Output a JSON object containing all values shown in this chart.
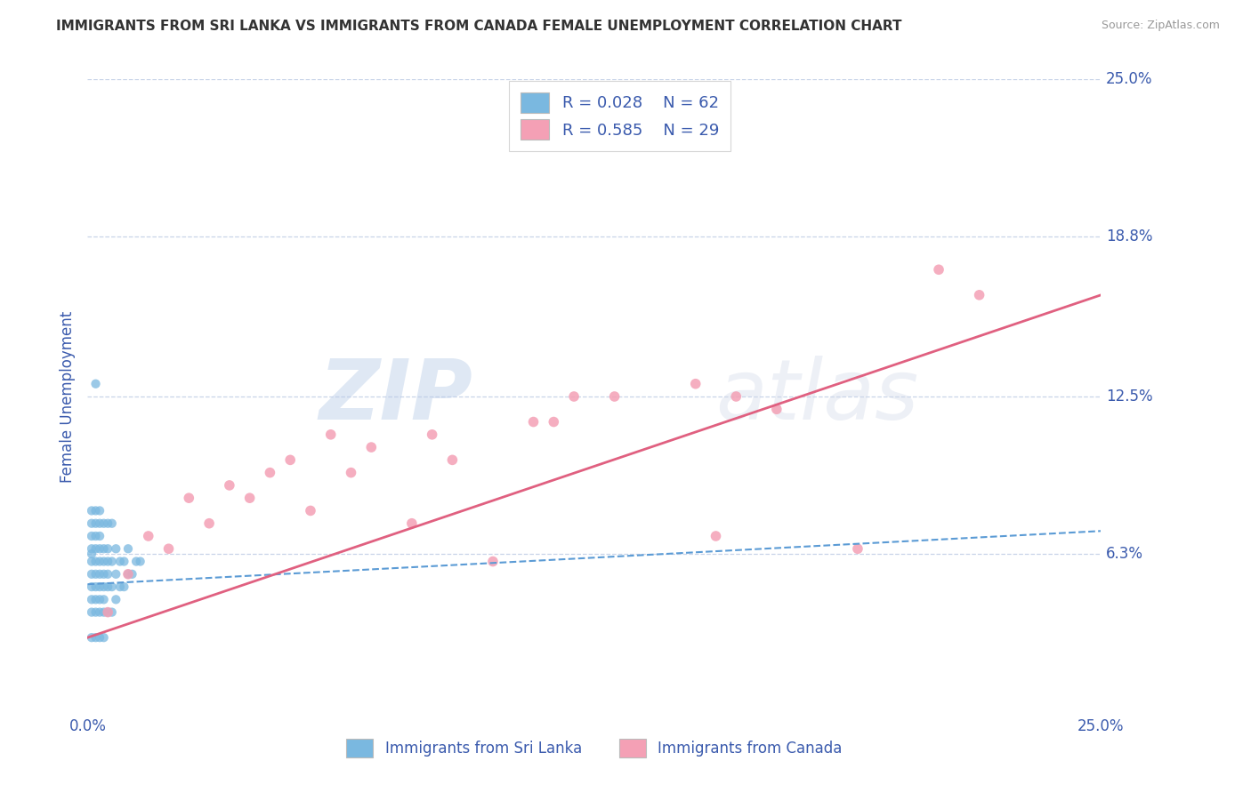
{
  "title": "IMMIGRANTS FROM SRI LANKA VS IMMIGRANTS FROM CANADA FEMALE UNEMPLOYMENT CORRELATION CHART",
  "source_text": "Source: ZipAtlas.com",
  "ylabel": "Female Unemployment",
  "xmin": 0.0,
  "xmax": 0.25,
  "ymin": 0.0,
  "ymax": 0.25,
  "yticks": [
    0.063,
    0.125,
    0.188,
    0.25
  ],
  "ytick_labels": [
    "6.3%",
    "12.5%",
    "18.8%",
    "25.0%"
  ],
  "watermark_zip": "ZIP",
  "watermark_atlas": "atlas",
  "legend_r1": "R = 0.028",
  "legend_n1": "N = 62",
  "legend_r2": "R = 0.585",
  "legend_n2": "N = 29",
  "color_blue": "#7ab8e0",
  "color_pink": "#f4a0b5",
  "color_line_blue": "#5b9bd5",
  "color_line_pink": "#e06080",
  "color_text": "#3a5aad",
  "background_color": "#ffffff",
  "grid_color": "#c8d4e8",
  "sri_lanka_x": [
    0.001,
    0.001,
    0.001,
    0.001,
    0.001,
    0.001,
    0.001,
    0.001,
    0.001,
    0.001,
    0.001,
    0.002,
    0.002,
    0.002,
    0.002,
    0.002,
    0.002,
    0.002,
    0.002,
    0.002,
    0.002,
    0.002,
    0.003,
    0.003,
    0.003,
    0.003,
    0.003,
    0.003,
    0.003,
    0.003,
    0.003,
    0.003,
    0.004,
    0.004,
    0.004,
    0.004,
    0.004,
    0.004,
    0.004,
    0.004,
    0.005,
    0.005,
    0.005,
    0.005,
    0.005,
    0.005,
    0.006,
    0.006,
    0.006,
    0.006,
    0.007,
    0.007,
    0.007,
    0.008,
    0.008,
    0.009,
    0.009,
    0.01,
    0.01,
    0.011,
    0.012,
    0.013
  ],
  "sri_lanka_y": [
    0.03,
    0.04,
    0.045,
    0.05,
    0.055,
    0.06,
    0.063,
    0.065,
    0.07,
    0.075,
    0.08,
    0.03,
    0.04,
    0.045,
    0.05,
    0.055,
    0.06,
    0.065,
    0.07,
    0.075,
    0.08,
    0.13,
    0.03,
    0.04,
    0.045,
    0.05,
    0.055,
    0.06,
    0.065,
    0.07,
    0.075,
    0.08,
    0.03,
    0.04,
    0.045,
    0.05,
    0.055,
    0.06,
    0.065,
    0.075,
    0.04,
    0.05,
    0.055,
    0.06,
    0.065,
    0.075,
    0.04,
    0.05,
    0.06,
    0.075,
    0.045,
    0.055,
    0.065,
    0.05,
    0.06,
    0.05,
    0.06,
    0.055,
    0.065,
    0.055,
    0.06,
    0.06
  ],
  "canada_x": [
    0.005,
    0.01,
    0.015,
    0.02,
    0.025,
    0.03,
    0.035,
    0.04,
    0.045,
    0.05,
    0.055,
    0.06,
    0.065,
    0.07,
    0.08,
    0.085,
    0.09,
    0.1,
    0.11,
    0.115,
    0.12,
    0.13,
    0.15,
    0.155,
    0.16,
    0.17,
    0.19,
    0.21,
    0.22
  ],
  "canada_y": [
    0.04,
    0.055,
    0.07,
    0.065,
    0.085,
    0.075,
    0.09,
    0.085,
    0.095,
    0.1,
    0.08,
    0.11,
    0.095,
    0.105,
    0.075,
    0.11,
    0.1,
    0.06,
    0.115,
    0.115,
    0.125,
    0.125,
    0.13,
    0.07,
    0.125,
    0.12,
    0.065,
    0.175,
    0.165
  ],
  "blue_trend_x0": 0.0,
  "blue_trend_y0": 0.051,
  "blue_trend_x1": 0.25,
  "blue_trend_y1": 0.072,
  "pink_trend_x0": 0.0,
  "pink_trend_y0": 0.03,
  "pink_trend_x1": 0.25,
  "pink_trend_y1": 0.165
}
